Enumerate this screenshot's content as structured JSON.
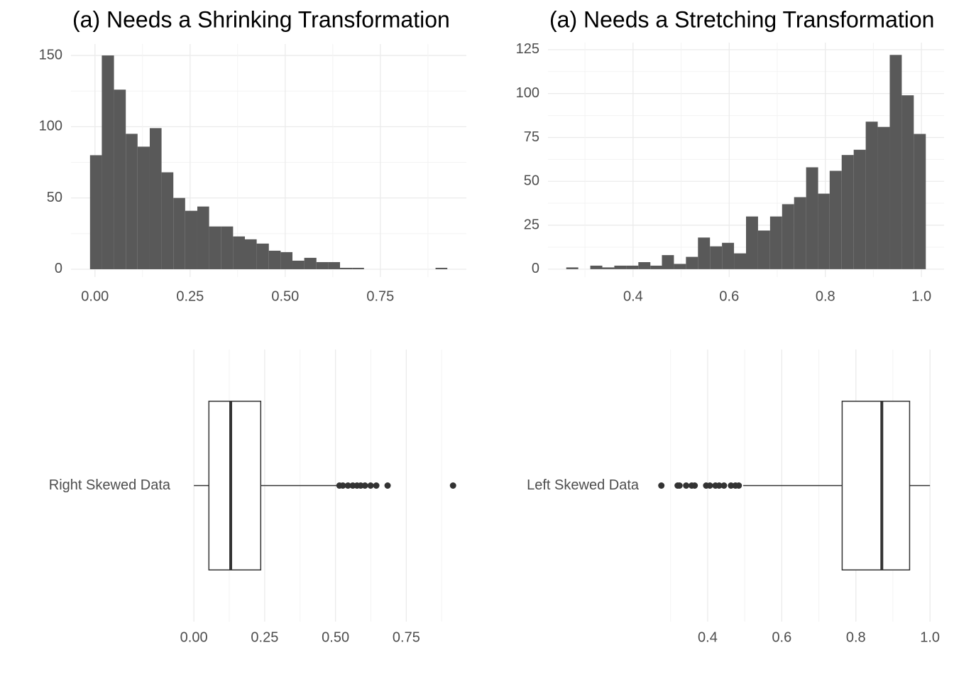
{
  "chart_data": [
    {
      "type": "histogram",
      "title": "(a) Needs a Shrinking Transformation",
      "bins": [
        -0.013,
        0.018,
        0.05,
        0.081,
        0.112,
        0.144,
        0.175,
        0.206,
        0.237,
        0.269,
        0.3,
        0.331,
        0.363,
        0.394,
        0.425,
        0.457,
        0.488,
        0.519,
        0.55,
        0.582,
        0.613,
        0.644,
        0.676,
        0.707,
        0.738,
        0.77,
        0.801,
        0.832,
        0.863,
        0.895,
        0.926
      ],
      "values": [
        80,
        150,
        126,
        95,
        86,
        99,
        68,
        50,
        41,
        44,
        30,
        30,
        23,
        21,
        18,
        13,
        12,
        6,
        8,
        5,
        5,
        1,
        1,
        0,
        0,
        0,
        0,
        0,
        0,
        1
      ],
      "color": "#595959",
      "xlim": [
        -0.063,
        0.976
      ],
      "ylim": [
        -5.5,
        158
      ],
      "xticks": [
        {
          "value": 0,
          "label": "0.00"
        },
        {
          "value": 0.25,
          "label": "0.25"
        },
        {
          "value": 0.5,
          "label": "0.50"
        },
        {
          "value": 0.75,
          "label": "0.75"
        }
      ],
      "yticks": [
        0,
        50,
        100,
        150
      ],
      "grid": true
    },
    {
      "type": "histogram",
      "title": "(a) Needs a Stretching Transformation",
      "bins": [
        0.261,
        0.286,
        0.311,
        0.336,
        0.361,
        0.386,
        0.411,
        0.436,
        0.46,
        0.485,
        0.51,
        0.535,
        0.56,
        0.585,
        0.61,
        0.635,
        0.66,
        0.685,
        0.71,
        0.735,
        0.76,
        0.785,
        0.809,
        0.834,
        0.859,
        0.884,
        0.909,
        0.934,
        0.959,
        0.984,
        1.009
      ],
      "values": [
        1,
        0,
        2,
        1,
        2,
        2,
        4,
        2,
        8,
        3,
        7,
        18,
        13,
        15,
        9,
        30,
        22,
        30,
        37,
        41,
        58,
        43,
        56,
        65,
        68,
        84,
        81,
        122,
        99,
        77
      ],
      "color": "#595959",
      "xlim": [
        0.223,
        1.047
      ],
      "ylim": [
        -4.5,
        129
      ],
      "xticks": [
        0.4,
        0.6,
        0.8,
        {
          "value": 1,
          "label": "1.0"
        }
      ],
      "yticks": [
        0,
        25,
        50,
        75,
        100,
        125
      ],
      "grid": true
    },
    {
      "type": "boxplot",
      "categories": [
        "Right Skewed Data"
      ],
      "boxes": [
        {
          "whisker_low": 0.0,
          "q1": 0.053,
          "median": 0.13,
          "q3": 0.236,
          "whisker_high": 0.507,
          "outliers": [
            0.514,
            0.526,
            0.544,
            0.561,
            0.576,
            0.589,
            0.604,
            0.624,
            0.644,
            0.684,
            0.915
          ]
        }
      ],
      "color": "#333333",
      "xlim": [
        -0.063,
        0.957
      ],
      "xticks": [
        {
          "value": 0,
          "label": "0.00"
        },
        {
          "value": 0.25,
          "label": "0.25"
        },
        {
          "value": 0.5,
          "label": "0.50"
        },
        {
          "value": 0.75,
          "label": "0.75"
        }
      ],
      "grid": true
    },
    {
      "type": "boxplot",
      "categories": [
        "Left Skewed Data"
      ],
      "boxes": [
        {
          "whisker_low": 0.496,
          "q1": 0.763,
          "median": 0.87,
          "q3": 0.945,
          "whisker_high": 1.0,
          "outliers": [
            0.275,
            0.319,
            0.324,
            0.342,
            0.357,
            0.365,
            0.396,
            0.406,
            0.421,
            0.431,
            0.444,
            0.463,
            0.475,
            0.484
          ]
        }
      ],
      "color": "#333333",
      "xlim": [
        0.243,
        1.038
      ],
      "xticks": [
        0.4,
        0.6,
        0.8,
        {
          "value": 1,
          "label": "1.0"
        }
      ],
      "grid": true
    }
  ]
}
